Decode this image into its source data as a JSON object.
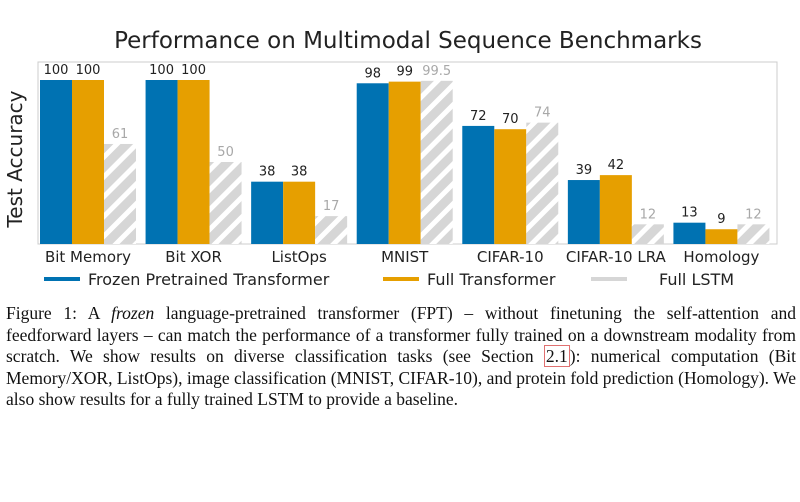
{
  "chart_data": {
    "type": "bar",
    "title": "Performance on Multimodal Sequence Benchmarks",
    "xlabel": "",
    "ylabel": "Test Accuracy",
    "ylim": [
      0,
      100
    ],
    "grid": false,
    "legend_position": "bottom",
    "categories": [
      "Bit Memory",
      "Bit XOR",
      "ListOps",
      "MNIST",
      "CIFAR-10",
      "CIFAR-10 LRA",
      "Homology"
    ],
    "series": [
      {
        "name": "Frozen Pretrained Transformer",
        "color": "#0072b2",
        "values": [
          100,
          100,
          38,
          98,
          72,
          39,
          13
        ],
        "labels": [
          "100",
          "100",
          "38",
          "98",
          "72",
          "39",
          "13"
        ]
      },
      {
        "name": "Full Transformer",
        "color": "#e69f00",
        "values": [
          100,
          100,
          38,
          99,
          70,
          42,
          9
        ],
        "labels": [
          "100",
          "100",
          "38",
          "99",
          "70",
          "42",
          "9"
        ]
      },
      {
        "name": "Full LSTM",
        "color": "#d9d9d9",
        "values": [
          61,
          50,
          17,
          99.5,
          74,
          12,
          12
        ],
        "labels": [
          "61",
          "50",
          "17",
          "99.5",
          "74",
          "12",
          "12"
        ]
      }
    ]
  },
  "caption": {
    "label": "Figure 1:",
    "text_a": " A ",
    "em": "frozen",
    "text_b": " language-pretrained transformer (FPT) – without finetuning the self-attention and feedforward layers – can match the performance of a transformer fully trained on a downstream modality from scratch. We show results on diverse classification tasks (see Section ",
    "ref": "2.1",
    "text_c": "): numerical computation (Bit Memory/XOR, ListOps), image classification (MNIST, CIFAR-10), and protein fold prediction (Homology). We also show results for a fully trained LSTM to provide a baseline."
  }
}
